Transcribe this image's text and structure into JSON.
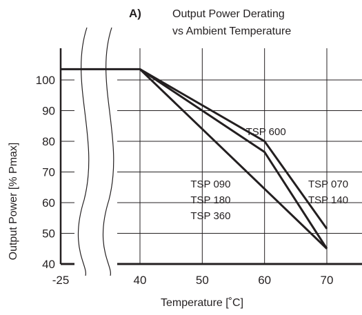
{
  "chart_data": {
    "type": "line",
    "panel_label": "A)",
    "title": [
      "Output Power Derating",
      "vs Ambient Temperature"
    ],
    "xlabel": "Temperature [˚C]",
    "ylabel": "Output Power [%  Pmax]",
    "x_ticks": [
      "-25",
      "40",
      "50",
      "60",
      "70"
    ],
    "y_ticks": [
      "40",
      "50",
      "60",
      "70",
      "80",
      "90",
      "100"
    ],
    "xlim": [
      -25,
      75
    ],
    "axis_break": [
      -25,
      40
    ],
    "ylim": [
      40,
      110
    ],
    "grid": true,
    "line_color": "#231f20",
    "series": [
      {
        "points": [
          [
            -25,
            103.5
          ],
          [
            40,
            103.5
          ],
          [
            60,
            80
          ],
          [
            70,
            51.5
          ]
        ]
      },
      {
        "points": [
          [
            40,
            103.5
          ],
          [
            60,
            76.5
          ],
          [
            70,
            45
          ]
        ]
      },
      {
        "points": [
          [
            40,
            103.5
          ],
          [
            70,
            45
          ]
        ]
      }
    ],
    "annotations": [
      {
        "lines": [
          "TSP 600"
        ],
        "x": 60,
        "y": 82
      },
      {
        "lines": [
          "TSP 090",
          "TSP 180",
          "TSP 360"
        ],
        "x": 55,
        "y": 65
      },
      {
        "lines": [
          "TSP 070",
          "TSP 140"
        ],
        "x": 70,
        "y": 65
      }
    ]
  }
}
